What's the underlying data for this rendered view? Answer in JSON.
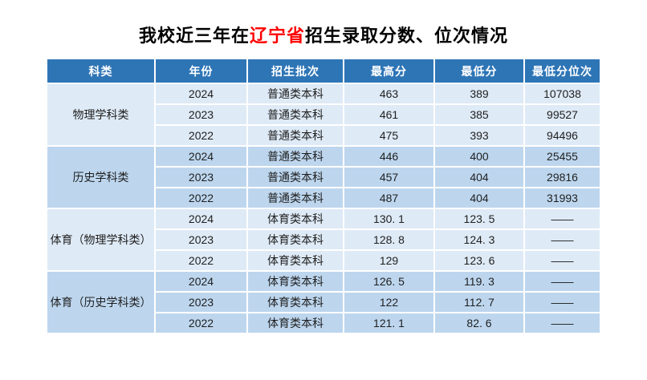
{
  "title": {
    "prefix": "我校近三年在",
    "highlight": "辽宁省",
    "suffix": "招生录取分数、位次情况"
  },
  "colors": {
    "header_bg": "#2e75b6",
    "row_light": "#deeaf6",
    "row_medium": "#bdd6ee",
    "title_highlight": "#ff0000",
    "header_text": "#ffffff",
    "cell_text": "#1f1f1f"
  },
  "table": {
    "headers": [
      "科类",
      "年份",
      "招生批次",
      "最高分",
      "最低分",
      "最低分位次"
    ],
    "groups": [
      {
        "category": "物理学科类",
        "rows": [
          {
            "year": "2024",
            "batch": "普通类本科",
            "max": "463",
            "min": "389",
            "rank": "107038"
          },
          {
            "year": "2023",
            "batch": "普通类本科",
            "max": "461",
            "min": "385",
            "rank": "99527"
          },
          {
            "year": "2022",
            "batch": "普通类本科",
            "max": "475",
            "min": "393",
            "rank": "94496"
          }
        ]
      },
      {
        "category": "历史学科类",
        "rows": [
          {
            "year": "2024",
            "batch": "普通类本科",
            "max": "446",
            "min": "400",
            "rank": "25455"
          },
          {
            "year": "2023",
            "batch": "普通类本科",
            "max": "457",
            "min": "404",
            "rank": "29816"
          },
          {
            "year": "2022",
            "batch": "普通类本科",
            "max": "487",
            "min": "404",
            "rank": "31993"
          }
        ]
      },
      {
        "category": "体育（物理学科类）",
        "rows": [
          {
            "year": "2024",
            "batch": "体育类本科",
            "max": "130. 1",
            "min": "123. 5",
            "rank": "——"
          },
          {
            "year": "2023",
            "batch": "体育类本科",
            "max": "128. 8",
            "min": "124. 3",
            "rank": "——"
          },
          {
            "year": "2022",
            "batch": "体育类本科",
            "max": "129",
            "min": "123. 6",
            "rank": "——"
          }
        ]
      },
      {
        "category": "体育（历史学科类）",
        "rows": [
          {
            "year": "2024",
            "batch": "体育类本科",
            "max": "126. 5",
            "min": "119. 3",
            "rank": "——"
          },
          {
            "year": "2023",
            "batch": "体育类本科",
            "max": "122",
            "min": "112. 7",
            "rank": "——"
          },
          {
            "year": "2022",
            "batch": "体育类本科",
            "max": "121. 1",
            "min": "82. 6",
            "rank": "——"
          }
        ]
      }
    ]
  },
  "chart_data": {
    "type": "table",
    "title": "我校近三年在辽宁省招生录取分数、位次情况",
    "columns": [
      "科类",
      "年份",
      "招生批次",
      "最高分",
      "最低分",
      "最低分位次"
    ],
    "rows": [
      [
        "物理学科类",
        2024,
        "普通类本科",
        463,
        389,
        107038
      ],
      [
        "物理学科类",
        2023,
        "普通类本科",
        461,
        385,
        99527
      ],
      [
        "物理学科类",
        2022,
        "普通类本科",
        475,
        393,
        94496
      ],
      [
        "历史学科类",
        2024,
        "普通类本科",
        446,
        400,
        25455
      ],
      [
        "历史学科类",
        2023,
        "普通类本科",
        457,
        404,
        29816
      ],
      [
        "历史学科类",
        2022,
        "普通类本科",
        487,
        404,
        31993
      ],
      [
        "体育（物理学科类）",
        2024,
        "体育类本科",
        130.1,
        123.5,
        "——"
      ],
      [
        "体育（物理学科类）",
        2023,
        "体育类本科",
        128.8,
        124.3,
        "——"
      ],
      [
        "体育（物理学科类）",
        2022,
        "体育类本科",
        129,
        123.6,
        "——"
      ],
      [
        "体育（历史学科类）",
        2024,
        "体育类本科",
        126.5,
        119.3,
        "——"
      ],
      [
        "体育（历史学科类）",
        2023,
        "体育类本科",
        122,
        112.7,
        "——"
      ],
      [
        "体育（历史学科类）",
        2022,
        "体育类本科",
        121.1,
        82.6,
        "——"
      ]
    ]
  }
}
